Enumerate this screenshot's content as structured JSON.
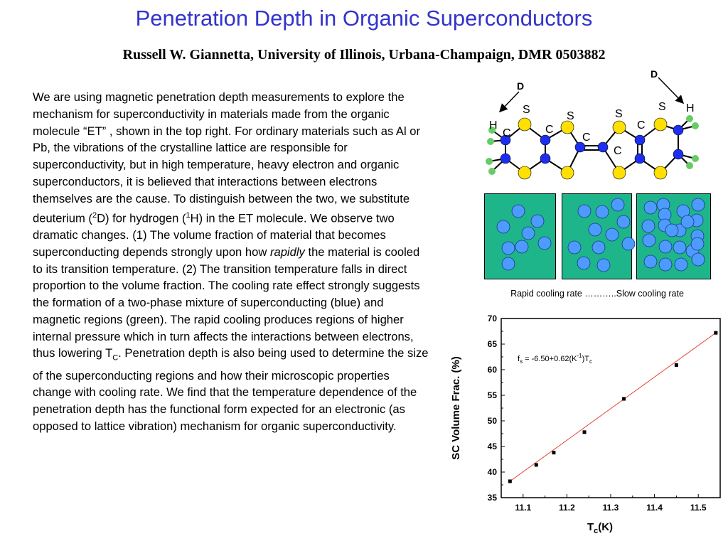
{
  "slide": {
    "title": "Penetration Depth in Organic Superconductors",
    "subtitle": "Russell W. Giannetta, University of Illinois, Urbana-Champaign, DMR 0503882",
    "body": {
      "p1": "We are using magnetic penetration depth measurements to explore the mechanism for superconductivity in materials made from the organic molecule “ET” , shown in the top right.  For ordinary materials such as Al or Pb, the vibrations of the crystalline lattice are responsible for superconductivity, but in high temperature, heavy electron and organic superconductors, it is believed that interactions between electrons themselves are the cause.  To distinguish between the two,  we substitute deuterium (",
      "sup1": "2",
      "p2": "D) for hydrogen (",
      "sup2": "1",
      "p3": "H) in the ET molecule. We observe two dramatic changes.  (1) The volume fraction of material that becomes superconducting depends strongly upon how ",
      "em": "rapidly",
      "p4": " the material is cooled to its transition temperature.  (2) The transition temperature falls in direct proportion to the volume fraction. The cooling rate effect strongly suggests the formation of a two-phase mixture of superconducting (blue) and magnetic regions (green). The rapid cooling produces regions of higher internal pressure which in turn affects the interactions between electrons, thus lowering T",
      "sub": "C",
      "p5": ".  Penetration depth is also being used to determine the size of the superconducting regions and how their microscopic properties change with cooling rate.  We find that the temperature dependence of the penetration depth has the functional form expected for an electronic (as opposed to lattice vibration) mechanism for organic superconductivity."
    }
  },
  "molecule": {
    "labels": {
      "d1": "D",
      "d2": "D",
      "h1": "H",
      "h2": "H",
      "s": "S",
      "c": "C"
    },
    "colors": {
      "sulfur": "#ffe000",
      "carbon": "#1e2ef0",
      "hydrogen": "#66cc66"
    }
  },
  "cooling": {
    "caption": "Rapid cooling rate ………..Slow cooling rate",
    "colors": {
      "magnetic_region": "#1eb58a",
      "sc_region": "#4d9bff"
    },
    "panels": [
      {
        "name": "rapid",
        "sc_regions": 7
      },
      {
        "name": "medium",
        "sc_regions": 11
      },
      {
        "name": "slow",
        "sc_regions": 27
      }
    ]
  },
  "chart_data": {
    "type": "scatter",
    "title": "",
    "xlabel_main": "T",
    "xlabel_sub": "c",
    "xlabel_tail": "(K)",
    "ylabel": "SC Volume Frac. (%)",
    "xlim": [
      11.05,
      11.55
    ],
    "ylim": [
      35,
      70
    ],
    "xticks": [
      "11.1",
      "11.2",
      "11.3",
      "11.4",
      "11.5"
    ],
    "xtick_values": [
      11.1,
      11.2,
      11.3,
      11.4,
      11.5
    ],
    "yticks": [
      "35",
      "40",
      "45",
      "50",
      "55",
      "60",
      "65",
      "70"
    ],
    "ytick_values": [
      35,
      40,
      45,
      50,
      55,
      60,
      65,
      70
    ],
    "points": [
      {
        "x": 11.07,
        "y": 38.2
      },
      {
        "x": 11.13,
        "y": 41.4
      },
      {
        "x": 11.17,
        "y": 43.8
      },
      {
        "x": 11.24,
        "y": 47.8
      },
      {
        "x": 11.33,
        "y": 54.3
      },
      {
        "x": 11.45,
        "y": 60.9
      },
      {
        "x": 11.54,
        "y": 67.2
      }
    ],
    "fit": {
      "intercept": -6.5,
      "slope": 0.62,
      "x_range": [
        11.07,
        11.54
      ]
    },
    "annotation": {
      "a": "f",
      "b": "s",
      "c": " = -6.50+0.62(K",
      "d": "-1",
      "e": ")T",
      "f": "c"
    },
    "colors": {
      "fit_line": "#e34a33",
      "marker": "#000000"
    }
  }
}
